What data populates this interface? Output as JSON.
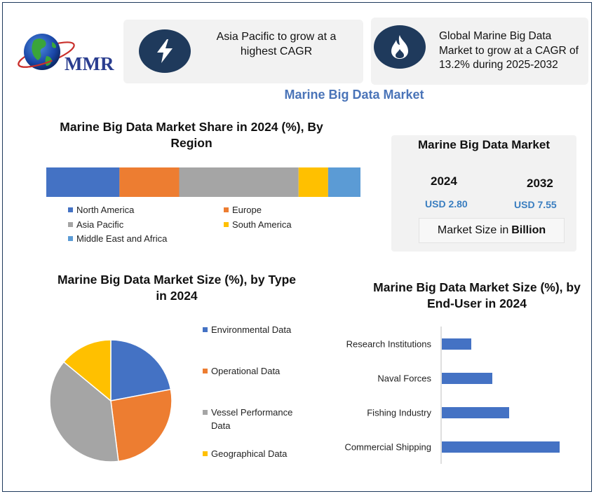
{
  "logo": {
    "text": "MMR"
  },
  "colors": {
    "navy": "#1f3a5c",
    "accent_blue": "#4472c4",
    "north_america": "#4472c4",
    "europe": "#ed7d31",
    "asia_pacific": "#a5a5a5",
    "south_america": "#ffc000",
    "middle_east_africa": "#5b9bd5"
  },
  "highlights": [
    {
      "icon": "lightning-icon",
      "text": "Asia Pacific to grow at a highest CAGR"
    },
    {
      "icon": "flame-icon",
      "text": "Global Marine Big Data Market to grow at a CAGR of 13.2% during 2025-2032"
    }
  ],
  "main_title": "Marine Big Data Market",
  "market_summary": {
    "title": "Marine Big Data Market",
    "year_2024": "2024",
    "value_2024": "USD 2.80",
    "year_2032": "2032",
    "value_2032": "USD 7.55",
    "size_label": "Market Size in",
    "size_unit": "Billion"
  },
  "chart_data": [
    {
      "type": "bar",
      "orientation": "stacked-horizontal",
      "title": "Marine Big Data Market Share in 2024 (%), By Region",
      "series": [
        {
          "name": "North America",
          "values": [
            23.3
          ]
        },
        {
          "name": "Europe",
          "values": [
            19
          ]
        },
        {
          "name": "Asia Pacific",
          "values": [
            38
          ]
        },
        {
          "name": "South America",
          "values": [
            9.4
          ]
        },
        {
          "name": "Middle East and Africa",
          "values": [
            10.3
          ]
        }
      ],
      "xlim": [
        0,
        100
      ],
      "legend": "bottom"
    },
    {
      "type": "pie",
      "title": "Marine Big Data Market Size (%), by Type in 2024",
      "labels": [
        "Environmental Data",
        "Operational Data",
        "Vessel Performance Data",
        "Geographical Data"
      ],
      "values": [
        22,
        26,
        38,
        14
      ],
      "legend": "right"
    },
    {
      "type": "bar",
      "orientation": "horizontal",
      "title": "Marine Big Data Market Size (%), by End-User in 2024",
      "categories": [
        "Research Institutions",
        "Naval Forces",
        "Fishing Industry",
        "Commercial Shipping"
      ],
      "values": [
        14,
        24,
        32,
        56
      ],
      "xlim": [
        0,
        70
      ],
      "grid": false
    }
  ]
}
